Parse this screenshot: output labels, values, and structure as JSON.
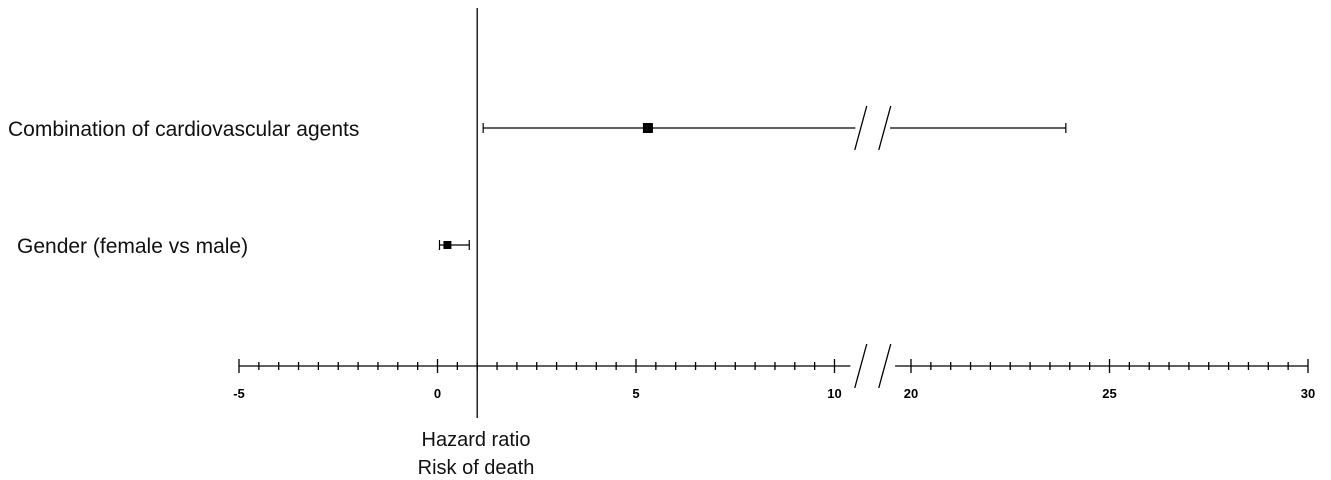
{
  "chart_data": {
    "type": "forest",
    "xlabel": "Hazard ratio",
    "xlabel_line2": "Risk of death",
    "axis_segments": [
      {
        "min": -5,
        "max": 10.4
      },
      {
        "min": 19.6,
        "max": 30
      }
    ],
    "axis_break": [
      10.4,
      19.6
    ],
    "ticks": {
      "minor_step": 0.5,
      "labeled": [
        -5,
        0,
        5,
        10,
        20,
        25,
        30
      ]
    },
    "reference_line": 1,
    "rows": [
      {
        "label": "Combination of cardiovascular agents",
        "estimate": 5.3,
        "ci_low": 1.15,
        "ci_high": 23.9
      },
      {
        "label": "Gender (female vs male)",
        "estimate": 0.25,
        "ci_low": 0.05,
        "ci_high": 0.8
      }
    ]
  }
}
